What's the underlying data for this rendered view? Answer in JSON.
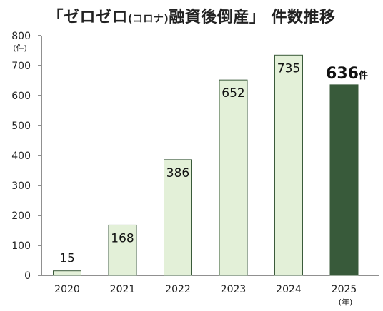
{
  "title": {
    "part1": "「ゼロゼロ",
    "part2": "(コロナ)",
    "part3": "融資後倒産」 件数推移"
  },
  "chart_data": {
    "type": "bar",
    "categories": [
      "2020",
      "2021",
      "2022",
      "2023",
      "2024",
      "2025"
    ],
    "values": [
      15,
      168,
      386,
      652,
      735,
      636
    ],
    "value_labels": [
      "15",
      "168",
      "386",
      "652",
      "735",
      "636"
    ],
    "highlight_suffix": "件",
    "y_unit": "(件)",
    "x_unit": "(年)",
    "ylim": [
      0,
      800
    ],
    "yticks": [
      0,
      100,
      200,
      300,
      400,
      500,
      600,
      700,
      800
    ],
    "grid": false,
    "colors": {
      "bar_fill": "#e3f0d8",
      "bar_stroke": "#3a5a3a",
      "highlight_fill": "#385a3a",
      "axis": "#222222"
    }
  }
}
